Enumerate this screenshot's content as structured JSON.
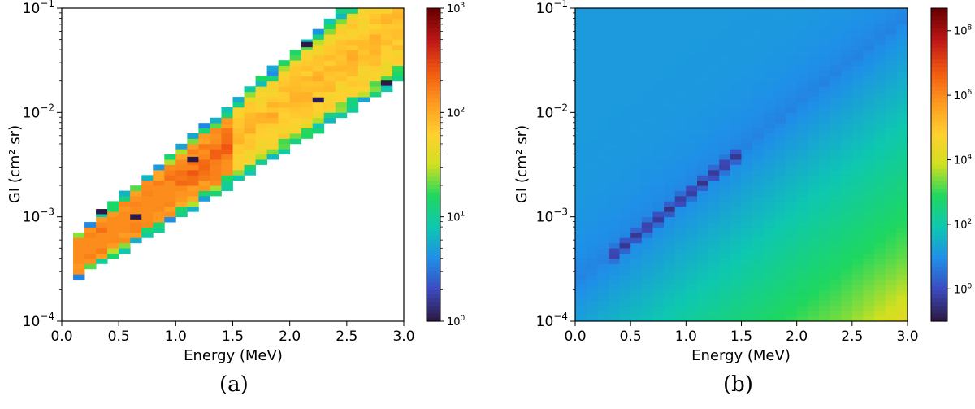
{
  "chart_data": [
    {
      "type": "heatmap",
      "panel": "(a)",
      "xlabel": "Energy (MeV)",
      "ylabel": "GI (cm² sr)",
      "xlim": [
        0.0,
        3.0
      ],
      "ylim": [
        0.0001,
        0.1
      ],
      "yscale": "log",
      "x_ticks": [
        "0.0",
        "0.5",
        "1.0",
        "1.5",
        "2.0",
        "2.5",
        "3.0"
      ],
      "y_tick_exponents": [
        "-4",
        "-3",
        "-2",
        "-1"
      ],
      "y_tick_base": "10",
      "colorbar": {
        "scale": "log",
        "range": [
          1,
          1000
        ],
        "tick_exponents": [
          "0",
          "1",
          "2",
          "3"
        ],
        "tick_base": "10"
      },
      "description": "Sparse band: counts concentrated along an increasing GI-vs-energy ridge, high (~100-1000) along the band core, empty outside.",
      "grid": false
    },
    {
      "type": "heatmap",
      "panel": "(b)",
      "xlabel": "Energy (MeV)",
      "ylabel": "GI (cm² sr)",
      "xlim": [
        0.0,
        3.0
      ],
      "ylim": [
        0.0001,
        0.1
      ],
      "yscale": "log",
      "x_ticks": [
        "0.0",
        "0.5",
        "1.0",
        "1.5",
        "2.0",
        "2.5",
        "3.0"
      ],
      "y_tick_exponents": [
        "-4",
        "-3",
        "-2",
        "-1"
      ],
      "y_tick_base": "10",
      "colorbar": {
        "scale": "log",
        "range": [
          0.1,
          500000000
        ],
        "tick_exponents": [
          "0",
          "2",
          "4",
          "6",
          "8"
        ],
        "tick_base": "10"
      },
      "description": "Dense field: low values (~1) above the ridge, minimum along the ridge, rising to ~100-1000 toward high energy / low GI.",
      "grid": false
    }
  ],
  "captions": {
    "a": "(a)",
    "b": "(b)"
  },
  "colormap": [
    "#2e1a47",
    "#3b4cc0",
    "#1f8fe8",
    "#0ec8b0",
    "#1ed760",
    "#d0e020",
    "#ffd030",
    "#ff9a20",
    "#f05a10",
    "#c01818",
    "#6b0000"
  ]
}
